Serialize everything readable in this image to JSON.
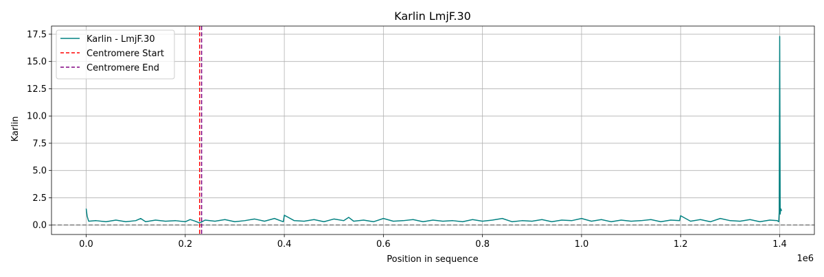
{
  "chart_data": {
    "type": "line",
    "title": "Karlin LmjF.30",
    "xlabel": "Position in sequence",
    "ylabel": "Karlin",
    "x_offset_label": "1e6",
    "xlim": [
      -70000,
      1470000
    ],
    "ylim": [
      -0.87,
      18.25
    ],
    "grid": true,
    "legend_position": "top-left",
    "x_ticks": [
      0,
      200000,
      400000,
      600000,
      800000,
      1000000,
      1200000,
      1400000
    ],
    "x_tick_labels": [
      "0.0",
      "0.2",
      "0.4",
      "0.6",
      "0.8",
      "1.0",
      "1.2",
      "1.4"
    ],
    "y_ticks": [
      0,
      2.5,
      5,
      7.5,
      10,
      12.5,
      15,
      17.5
    ],
    "y_tick_labels": [
      "0.0",
      "2.5",
      "5.0",
      "7.5",
      "10.0",
      "12.5",
      "15.0",
      "17.5"
    ],
    "series": [
      {
        "name": "Karlin - LmjF.30",
        "color": "#008080",
        "style": "solid",
        "x": [
          0,
          2000,
          5000,
          20000,
          40000,
          60000,
          80000,
          100000,
          110000,
          120000,
          140000,
          160000,
          180000,
          200000,
          210000,
          220000,
          228000,
          232000,
          240000,
          260000,
          280000,
          300000,
          320000,
          340000,
          360000,
          380000,
          398000,
          400000,
          420000,
          440000,
          460000,
          480000,
          500000,
          520000,
          530000,
          540000,
          560000,
          580000,
          600000,
          620000,
          640000,
          660000,
          680000,
          700000,
          720000,
          740000,
          760000,
          780000,
          800000,
          820000,
          840000,
          860000,
          880000,
          900000,
          920000,
          940000,
          960000,
          980000,
          1000000,
          1020000,
          1040000,
          1060000,
          1080000,
          1100000,
          1120000,
          1140000,
          1160000,
          1180000,
          1198000,
          1200000,
          1220000,
          1240000,
          1260000,
          1280000,
          1300000,
          1320000,
          1340000,
          1360000,
          1380000,
          1395000,
          1398000,
          1399000,
          1400000,
          1401000,
          1402000,
          1404000
        ],
        "y": [
          1.5,
          0.8,
          0.35,
          0.4,
          0.3,
          0.45,
          0.3,
          0.4,
          0.6,
          0.3,
          0.45,
          0.35,
          0.4,
          0.3,
          0.5,
          0.35,
          0.2,
          0.25,
          0.45,
          0.35,
          0.5,
          0.3,
          0.4,
          0.55,
          0.35,
          0.6,
          0.3,
          0.9,
          0.4,
          0.35,
          0.5,
          0.3,
          0.55,
          0.4,
          0.7,
          0.35,
          0.45,
          0.3,
          0.6,
          0.35,
          0.4,
          0.5,
          0.3,
          0.45,
          0.35,
          0.4,
          0.3,
          0.5,
          0.35,
          0.45,
          0.6,
          0.3,
          0.4,
          0.35,
          0.5,
          0.3,
          0.45,
          0.4,
          0.6,
          0.35,
          0.5,
          0.3,
          0.45,
          0.35,
          0.4,
          0.5,
          0.3,
          0.45,
          0.4,
          0.85,
          0.35,
          0.5,
          0.3,
          0.6,
          0.4,
          0.35,
          0.5,
          0.3,
          0.45,
          0.4,
          0.3,
          1.2,
          17.3,
          1.0,
          1.5,
          1.3
        ]
      },
      {
        "name": "Centromere Start",
        "color": "#ff0000",
        "style": "dashed",
        "vline_x": 229000
      },
      {
        "name": "Centromere End",
        "color": "#800080",
        "style": "dashed",
        "vline_x": 233000
      }
    ],
    "hline": {
      "y": 0,
      "color": "#808080",
      "style": "dashed"
    }
  }
}
